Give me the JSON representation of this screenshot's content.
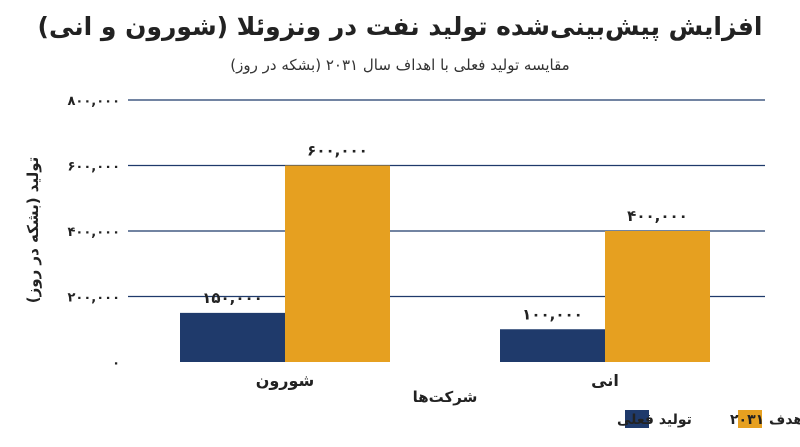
{
  "chart_data": {
    "type": "bar",
    "title": "افزایش پیش‌بینی‌شده تولید نفت در ونزوئلا (شورون و انی)",
    "subtitle": "مقایسه تولید فعلی با اهداف سال ۲۰۳۱ (بشکه در روز)",
    "xlabel": "شرکت‌ها",
    "ylabel": "تولید (بشکه در روز)",
    "categories": [
      "شورون",
      "انی"
    ],
    "series": [
      {
        "name": "تولید فعلی",
        "values": [
          150000,
          100000
        ],
        "labels": [
          "۱۵۰,۰۰۰",
          "۱۰۰,۰۰۰"
        ],
        "color": "#1f3a6b"
      },
      {
        "name": "هدف ۲۰۳۱",
        "values": [
          600000,
          400000
        ],
        "labels": [
          "۶۰۰,۰۰۰",
          "۴۰۰,۰۰۰"
        ],
        "color": "#e6a020"
      }
    ],
    "ylim": [
      0,
      800000
    ],
    "yticks": [
      0,
      200000,
      400000,
      600000,
      800000
    ],
    "ytick_labels": [
      "۰",
      "۲۰۰,۰۰۰",
      "۴۰۰,۰۰۰",
      "۶۰۰,۰۰۰",
      "۸۰۰,۰۰۰"
    ],
    "grid": true,
    "legend_position": "bottom-right"
  }
}
